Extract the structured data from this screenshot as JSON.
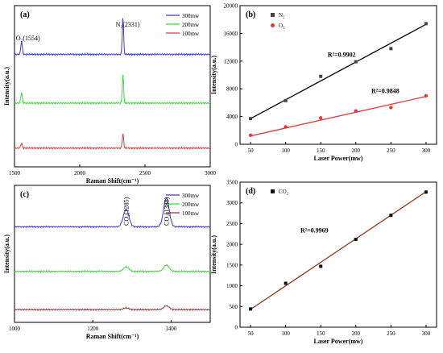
{
  "chart_data": [
    {
      "id": "a",
      "type": "line",
      "panel_label": "(a)",
      "xlabel": "Raman Shift(cm⁻¹)",
      "ylabel": "Intensity(a.u.)",
      "xlim": [
        1500,
        3000
      ],
      "xticks": [
        1500,
        2000,
        2500,
        3000
      ],
      "colors": [
        "#3a3ad8",
        "#3ad83a",
        "#e03a3a"
      ],
      "series": [
        {
          "name": "300mw",
          "offset": 3.0,
          "peaks": [
            [
              1554,
              0.35,
              8
            ],
            [
              2331,
              1.0,
              7
            ]
          ]
        },
        {
          "name": "200mw",
          "offset": 1.7,
          "peaks": [
            [
              1554,
              0.28,
              8
            ],
            [
              2331,
              0.78,
              7
            ]
          ]
        },
        {
          "name": "100mw",
          "offset": 0.5,
          "peaks": [
            [
              1554,
              0.13,
              8
            ],
            [
              2331,
              0.4,
              7
            ]
          ]
        }
      ],
      "annotations": [
        {
          "text": "O₂(1554)",
          "x": 1554
        },
        {
          "text": "N₂(2331)",
          "x": 2331
        }
      ]
    },
    {
      "id": "b",
      "type": "scatter",
      "panel_label": "(b)",
      "xlabel": "Laser Power(mw)",
      "ylabel": "Intensity(a.u.)",
      "xlim": [
        35,
        315
      ],
      "ylim": [
        0,
        20000
      ],
      "xticks": [
        50,
        100,
        150,
        200,
        250,
        300
      ],
      "yticks": [
        0,
        4000,
        8000,
        12000,
        16000,
        20000
      ],
      "x": [
        50,
        100,
        150,
        200,
        250,
        300
      ],
      "series": [
        {
          "name": "N₂",
          "marker": "square",
          "color": "#444444",
          "fit_color": "#000000",
          "values": [
            3700,
            6300,
            9800,
            11900,
            13800,
            17400
          ],
          "fit": [
            3700,
            17300
          ],
          "r2": "R²=0.9902"
        },
        {
          "name": "O₂",
          "marker": "circle",
          "color": "#e03a3a",
          "fit_color": "#e03a3a",
          "values": [
            1300,
            2500,
            3800,
            4800,
            5300,
            7000
          ],
          "fit": [
            1200,
            6900
          ],
          "r2": "R²=0.9848"
        }
      ]
    },
    {
      "id": "c",
      "type": "line",
      "panel_label": "(c)",
      "xlabel": "Raman Shift(cm⁻¹)",
      "ylabel": "Intensity(a.u.)",
      "xlim": [
        1000,
        1500
      ],
      "xticks": [
        1000,
        1200,
        1400
      ],
      "colors": [
        "#3a3ad8",
        "#3ad83a",
        "#8b3a3a"
      ],
      "series": [
        {
          "name": "300mw",
          "offset": 3.0,
          "peaks": [
            [
              1285,
              0.55,
              10
            ],
            [
              1388,
              0.9,
              10
            ]
          ]
        },
        {
          "name": "200mw",
          "offset": 1.6,
          "peaks": [
            [
              1285,
              0.14,
              10
            ],
            [
              1388,
              0.2,
              10
            ]
          ]
        },
        {
          "name": "100mw",
          "offset": 0.4,
          "peaks": [
            [
              1285,
              0.05,
              10
            ],
            [
              1388,
              0.12,
              10
            ]
          ]
        }
      ],
      "annotations": [
        {
          "text": "CO₂(1285)",
          "x": 1285
        },
        {
          "text": "CO₂(1388)",
          "x": 1388
        }
      ]
    },
    {
      "id": "d",
      "type": "scatter",
      "panel_label": "(d)",
      "xlabel": "Laser Power(mw)",
      "ylabel": "Intensity(a.u.)",
      "xlim": [
        35,
        315
      ],
      "ylim": [
        0,
        3500
      ],
      "xticks": [
        50,
        100,
        150,
        200,
        250,
        300
      ],
      "yticks": [
        0,
        500,
        1000,
        1500,
        2000,
        2500,
        3000,
        3500
      ],
      "x": [
        50,
        100,
        150,
        200,
        250,
        300
      ],
      "series": [
        {
          "name": "CO₂",
          "marker": "square",
          "color": "#111111",
          "fit_color": "#8b3a1a",
          "values": [
            440,
            1060,
            1470,
            2120,
            2700,
            3260
          ],
          "fit": [
            430,
            3270
          ],
          "r2": "R²=0.9969"
        }
      ]
    }
  ]
}
